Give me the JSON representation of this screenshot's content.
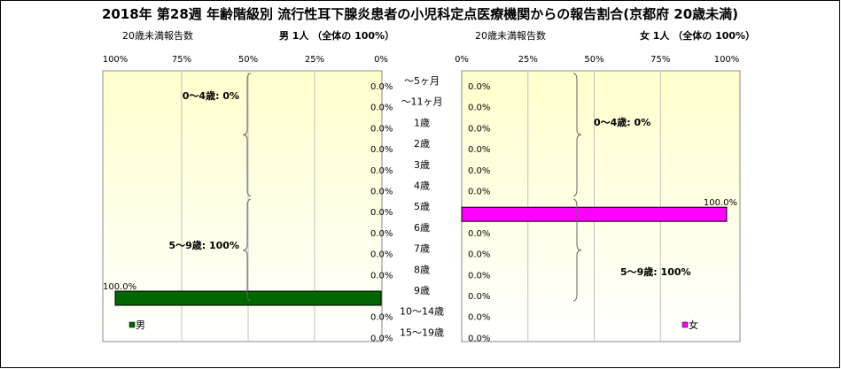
{
  "title": "2018年 第28週 年齢階級別 流行性耳下腺炎患者の小児科定点医療機関からの報告割合(京都府 20歳未満)",
  "categories": [
    "～5ヶ月",
    "～11ヶ月",
    "1歳",
    "2歳",
    "3歳",
    "4歳",
    "5歳",
    "6歳",
    "7歳",
    "8歳",
    "9歳",
    "10～14歳",
    "15～19歳"
  ],
  "colors": {
    "male": "#006600",
    "female": "#ff00ff",
    "frame_fill_top": "#ffffcc",
    "frame_fill_bottom": "#ffffff"
  },
  "chart_data": [
    {
      "type": "bar",
      "orientation": "horizontal",
      "direction": "right-to-left",
      "subtitle_left": "20歳未満報告数",
      "subtitle_right": "男 1人 （全体の 100%）",
      "categories": [
        "～5ヶ月",
        "～11ヶ月",
        "1歳",
        "2歳",
        "3歳",
        "4歳",
        "5歳",
        "6歳",
        "7歳",
        "8歳",
        "9歳",
        "10～14歳",
        "15～19歳"
      ],
      "series": [
        {
          "name": "男",
          "values": [
            0,
            0,
            0,
            0,
            0,
            0,
            0,
            0,
            0,
            0,
            100,
            0,
            0
          ]
        }
      ],
      "value_labels": [
        "0.0%",
        "0.0%",
        "0.0%",
        "0.0%",
        "0.0%",
        "0.0%",
        "0.0%",
        "0.0%",
        "0.0%",
        "0.0%",
        "100.0%",
        "0.0%",
        "0.0%"
      ],
      "xticks": [
        "100%",
        "75%",
        "50%",
        "25%",
        "0%"
      ],
      "xlim": [
        0,
        100
      ],
      "groups": [
        {
          "label": "0～4歳: 0%",
          "from": 0,
          "to": 5
        },
        {
          "label": "5～9歳: 100%",
          "from": 6,
          "to": 10
        }
      ],
      "legend": "男",
      "legend_position": "bottom-left"
    },
    {
      "type": "bar",
      "orientation": "horizontal",
      "direction": "left-to-right",
      "subtitle_left": "20歳未満報告数",
      "subtitle_right": "女 1人 （全体の 100%）",
      "categories": [
        "～5ヶ月",
        "～11ヶ月",
        "1歳",
        "2歳",
        "3歳",
        "4歳",
        "5歳",
        "6歳",
        "7歳",
        "8歳",
        "9歳",
        "10～14歳",
        "15～19歳"
      ],
      "series": [
        {
          "name": "女",
          "values": [
            0,
            0,
            0,
            0,
            0,
            0,
            100,
            0,
            0,
            0,
            0,
            0,
            0
          ]
        }
      ],
      "value_labels": [
        "0.0%",
        "0.0%",
        "0.0%",
        "0.0%",
        "0.0%",
        "0.0%",
        "100.0%",
        "0.0%",
        "0.0%",
        "0.0%",
        "0.0%",
        "0.0%",
        "0.0%"
      ],
      "xticks": [
        "0%",
        "25%",
        "50%",
        "75%",
        "100%"
      ],
      "xlim": [
        0,
        100
      ],
      "groups": [
        {
          "label": "0～4歳: 0%",
          "from": 0,
          "to": 5
        },
        {
          "label": "5～9歳: 100%",
          "from": 6,
          "to": 10
        }
      ],
      "legend": "女",
      "legend_position": "bottom-right"
    }
  ]
}
